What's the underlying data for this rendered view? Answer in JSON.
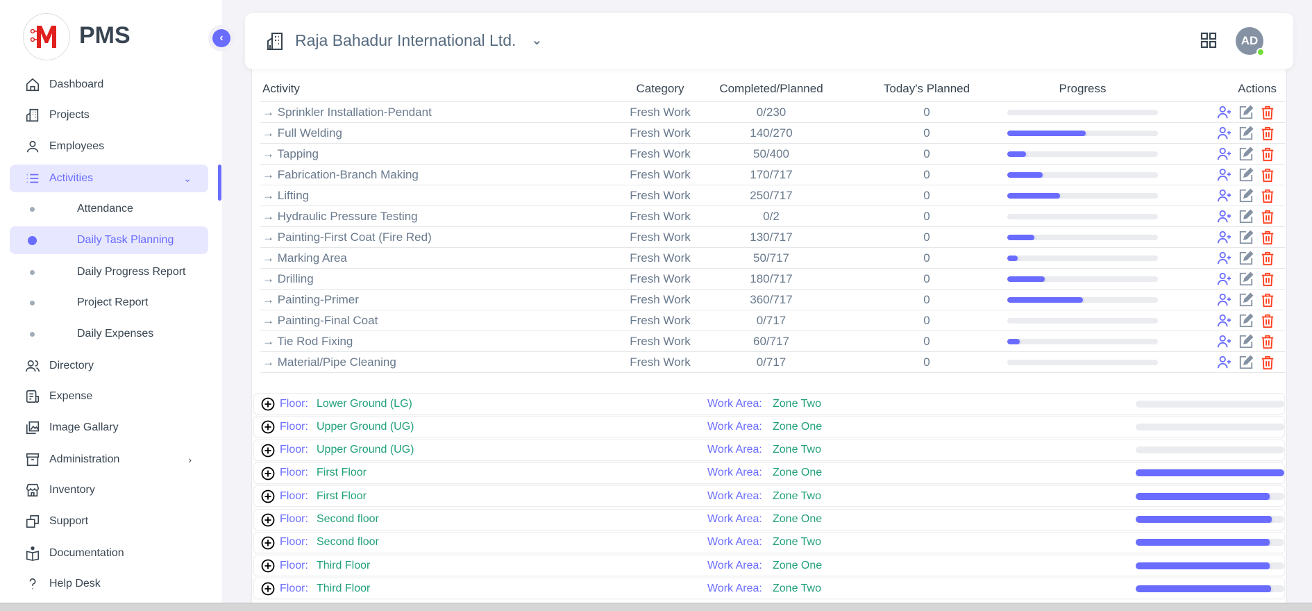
{
  "brand": {
    "name": "PMS",
    "logo_letter": "M"
  },
  "sidebar": {
    "items": [
      {
        "label": "Dashboard",
        "icon": "home-icon"
      },
      {
        "label": "Projects",
        "icon": "building-icon"
      },
      {
        "label": "Employees",
        "icon": "user-icon"
      },
      {
        "label": "Activities",
        "icon": "list-icon",
        "active": true,
        "expanded": true
      },
      {
        "label": "Directory",
        "icon": "users-icon"
      },
      {
        "label": "Expense",
        "icon": "receipt-icon"
      },
      {
        "label": "Image Gallary",
        "icon": "image-icon"
      },
      {
        "label": "Administration",
        "icon": "archive-icon",
        "has_submenu": true
      },
      {
        "label": "Inventory",
        "icon": "store-icon"
      },
      {
        "label": "Support",
        "icon": "copy-icon"
      },
      {
        "label": "Documentation",
        "icon": "book-icon"
      },
      {
        "label": "Help Desk",
        "icon": "question-icon"
      }
    ],
    "sub_items": [
      {
        "label": "Attendance"
      },
      {
        "label": "Daily Task Planning",
        "active": true
      },
      {
        "label": "Daily Progress Report"
      },
      {
        "label": "Project Report"
      },
      {
        "label": "Daily Expenses"
      }
    ]
  },
  "header": {
    "project": "Raja Bahadur International Ltd.",
    "avatar_initials": "AD",
    "status": "online"
  },
  "table": {
    "columns": [
      "Activity",
      "Category",
      "Completed/Planned",
      "Today's Planned",
      "Progress",
      "Actions"
    ],
    "rows": [
      {
        "activity": "Sprinkler Installation-Pendant",
        "category": "Fresh Work",
        "completed": "0/230",
        "today": "0",
        "progress": 0
      },
      {
        "activity": "Full Welding",
        "category": "Fresh Work",
        "completed": "140/270",
        "today": "0",
        "progress": 52
      },
      {
        "activity": "Tapping",
        "category": "Fresh Work",
        "completed": "50/400",
        "today": "0",
        "progress": 12.5
      },
      {
        "activity": "Fabrication-Branch Making",
        "category": "Fresh Work",
        "completed": "170/717",
        "today": "0",
        "progress": 23.7
      },
      {
        "activity": "Lifting",
        "category": "Fresh Work",
        "completed": "250/717",
        "today": "0",
        "progress": 34.9
      },
      {
        "activity": "Hydraulic Pressure Testing",
        "category": "Fresh Work",
        "completed": "0/2",
        "today": "0",
        "progress": 0
      },
      {
        "activity": "Painting-First Coat (Fire Red)",
        "category": "Fresh Work",
        "completed": "130/717",
        "today": "0",
        "progress": 18.1
      },
      {
        "activity": "Marking Area",
        "category": "Fresh Work",
        "completed": "50/717",
        "today": "0",
        "progress": 7
      },
      {
        "activity": "Drilling",
        "category": "Fresh Work",
        "completed": "180/717",
        "today": "0",
        "progress": 25.1
      },
      {
        "activity": "Painting-Primer",
        "category": "Fresh Work",
        "completed": "360/717",
        "today": "0",
        "progress": 50.2
      },
      {
        "activity": "Painting-Final Coat",
        "category": "Fresh Work",
        "completed": "0/717",
        "today": "0",
        "progress": 0
      },
      {
        "activity": "Tie Rod Fixing",
        "category": "Fresh Work",
        "completed": "60/717",
        "today": "0",
        "progress": 8.4
      },
      {
        "activity": "Material/Pipe Cleaning",
        "category": "Fresh Work",
        "completed": "0/717",
        "today": "0",
        "progress": 0
      }
    ]
  },
  "floors": {
    "floor_label": "Floor:",
    "work_area_label": "Work Area:",
    "rows": [
      {
        "floor": "Lower Ground (LG)",
        "work_area": "Zone Two",
        "progress": 0
      },
      {
        "floor": "Upper Ground (UG)",
        "work_area": "Zone One",
        "progress": 0
      },
      {
        "floor": "Upper Ground (UG)",
        "work_area": "Zone Two",
        "progress": 0
      },
      {
        "floor": "First Floor",
        "work_area": "Zone One",
        "progress": 100
      },
      {
        "floor": "First Floor",
        "work_area": "Zone Two",
        "progress": 90
      },
      {
        "floor": "Second floor",
        "work_area": "Zone One",
        "progress": 91.5
      },
      {
        "floor": "Second floor",
        "work_area": "Zone Two",
        "progress": 90
      },
      {
        "floor": "Third Floor",
        "work_area": "Zone One",
        "progress": 90
      },
      {
        "floor": "Third Floor",
        "work_area": "Zone Two",
        "progress": 91
      }
    ]
  },
  "colors": {
    "primary": "#696cff",
    "accent_green": "#20a07b",
    "danger": "#ff3e1d",
    "online": "#71dd37",
    "logo_red": "#e0201f"
  }
}
